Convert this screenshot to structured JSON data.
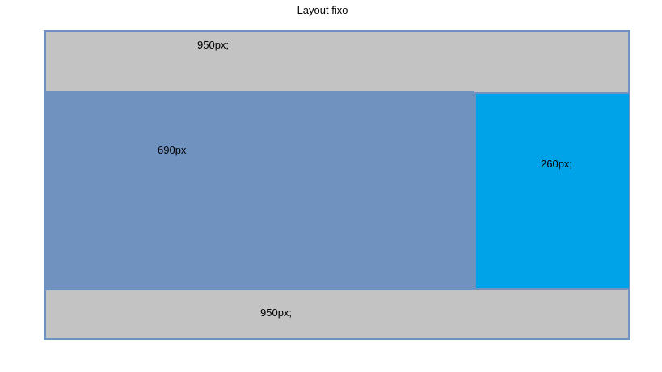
{
  "title": "Layout fixo",
  "blocks": {
    "header": {
      "label": "950px;"
    },
    "main": {
      "label": "690px"
    },
    "sidebar": {
      "label": "260px;"
    },
    "footer": {
      "label": "950px;"
    }
  },
  "colors": {
    "frame_border": "#6f92c0",
    "header_bg": "#c3c3c3",
    "main_bg": "#7092bf",
    "sidebar_bg": "#00a2e8",
    "footer_bg": "#c3c3c3"
  }
}
